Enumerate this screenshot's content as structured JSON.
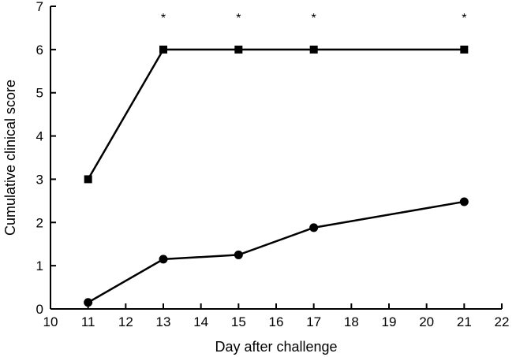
{
  "chart_data": {
    "type": "line",
    "title": "",
    "xlabel": "Day after challenge",
    "ylabel": "Cumulative clinical score",
    "xlim": [
      10,
      22
    ],
    "ylim": [
      0,
      7
    ],
    "x_ticks": [
      "10",
      "11",
      "12",
      "13",
      "14",
      "15",
      "16",
      "17",
      "18",
      "19",
      "20",
      "21",
      "22"
    ],
    "y_ticks": [
      "0",
      "1",
      "2",
      "3",
      "4",
      "5",
      "6",
      "7"
    ],
    "grid": false,
    "legend": "none",
    "series": [
      {
        "marker": "square",
        "color": "#000000",
        "x": [
          11,
          13,
          15,
          17,
          21
        ],
        "y": [
          3,
          6,
          6,
          6,
          6
        ]
      },
      {
        "marker": "circle",
        "color": "#000000",
        "x": [
          11,
          13,
          15,
          17,
          21
        ],
        "y": [
          0.15,
          1.15,
          1.25,
          1.88,
          2.48
        ]
      }
    ],
    "annotations": [
      {
        "text": "*",
        "x": 13
      },
      {
        "text": "*",
        "x": 15
      },
      {
        "text": "*",
        "x": 17
      },
      {
        "text": "*",
        "x": 21
      }
    ]
  }
}
